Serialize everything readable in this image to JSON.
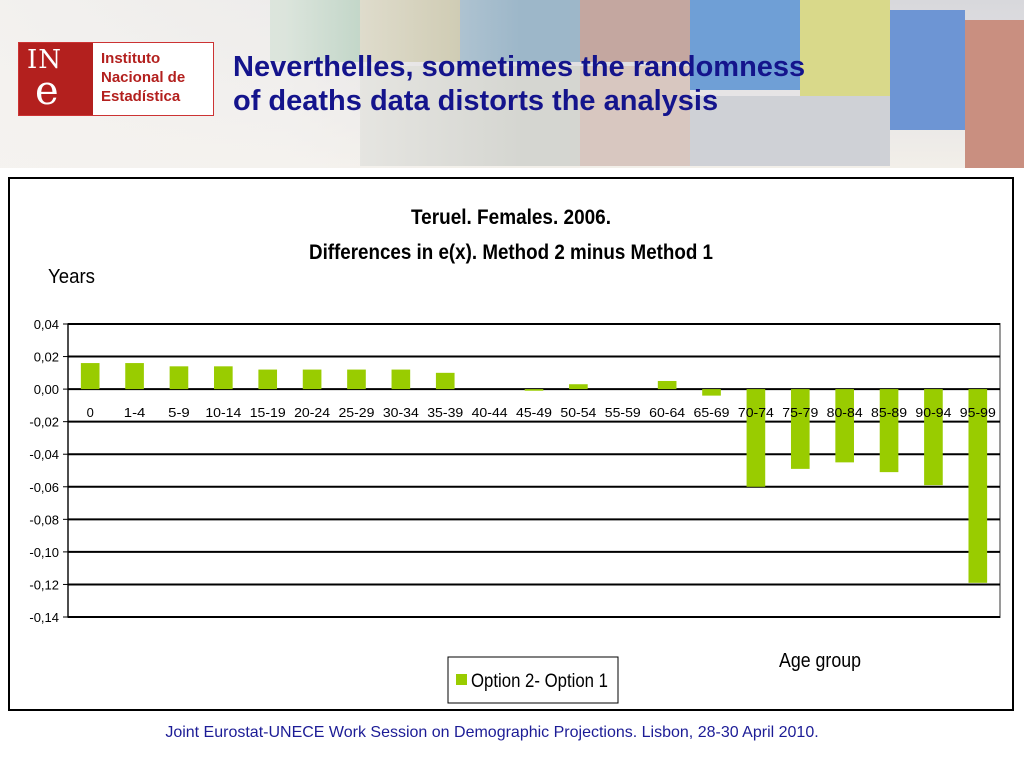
{
  "header": {
    "title_line1": "Neverthelles, sometimes the randomness",
    "title_line2": "of deaths data distorts the analysis"
  },
  "logo": {
    "mark_text": "IN",
    "mark_letter": "e",
    "name_line1": "Instituto",
    "name_line2": "Nacional de",
    "name_line3": "Estadística"
  },
  "colors": {
    "headline": "#14148c",
    "bar": "#99cc00",
    "footer": "#1c1c96",
    "brand": "#b3201e"
  },
  "chart_data": {
    "type": "bar",
    "title": "Teruel. Females. 2006.",
    "subtitle": "Differences in e(x). Method 2 minus Method 1",
    "ylabel": "Years",
    "xlabel": "Age group",
    "categories": [
      "0",
      "1-4",
      "5-9",
      "10-14",
      "15-19",
      "20-24",
      "25-29",
      "30-34",
      "35-39",
      "40-44",
      "45-49",
      "50-54",
      "55-59",
      "60-64",
      "65-69",
      "70-74",
      "75-79",
      "80-84",
      "85-89",
      "90-94",
      "95-99"
    ],
    "series": [
      {
        "name": "Option 2- Option 1",
        "values": [
          0.016,
          0.016,
          0.014,
          0.014,
          0.012,
          0.012,
          0.012,
          0.012,
          0.01,
          0.0,
          -0.001,
          0.003,
          0.0,
          0.005,
          -0.004,
          -0.06,
          -0.049,
          -0.045,
          -0.051,
          -0.059,
          -0.119
        ]
      }
    ],
    "ylim": [
      -0.14,
      0.04
    ],
    "yticks": [
      "0,04",
      "0,02",
      "0,00",
      "-0,02",
      "-0,04",
      "-0,06",
      "-0,08",
      "-0,10",
      "-0,12",
      "-0,14"
    ],
    "ytick_values": [
      0.04,
      0.02,
      0.0,
      -0.02,
      -0.04,
      -0.06,
      -0.08,
      -0.1,
      -0.12,
      -0.14
    ],
    "grid": true,
    "legend_position": "bottom-center"
  },
  "footer": {
    "text": "Joint Eurostat-UNECE Work Session on Demographic Projections. Lisbon, 28-30 April 2010."
  }
}
